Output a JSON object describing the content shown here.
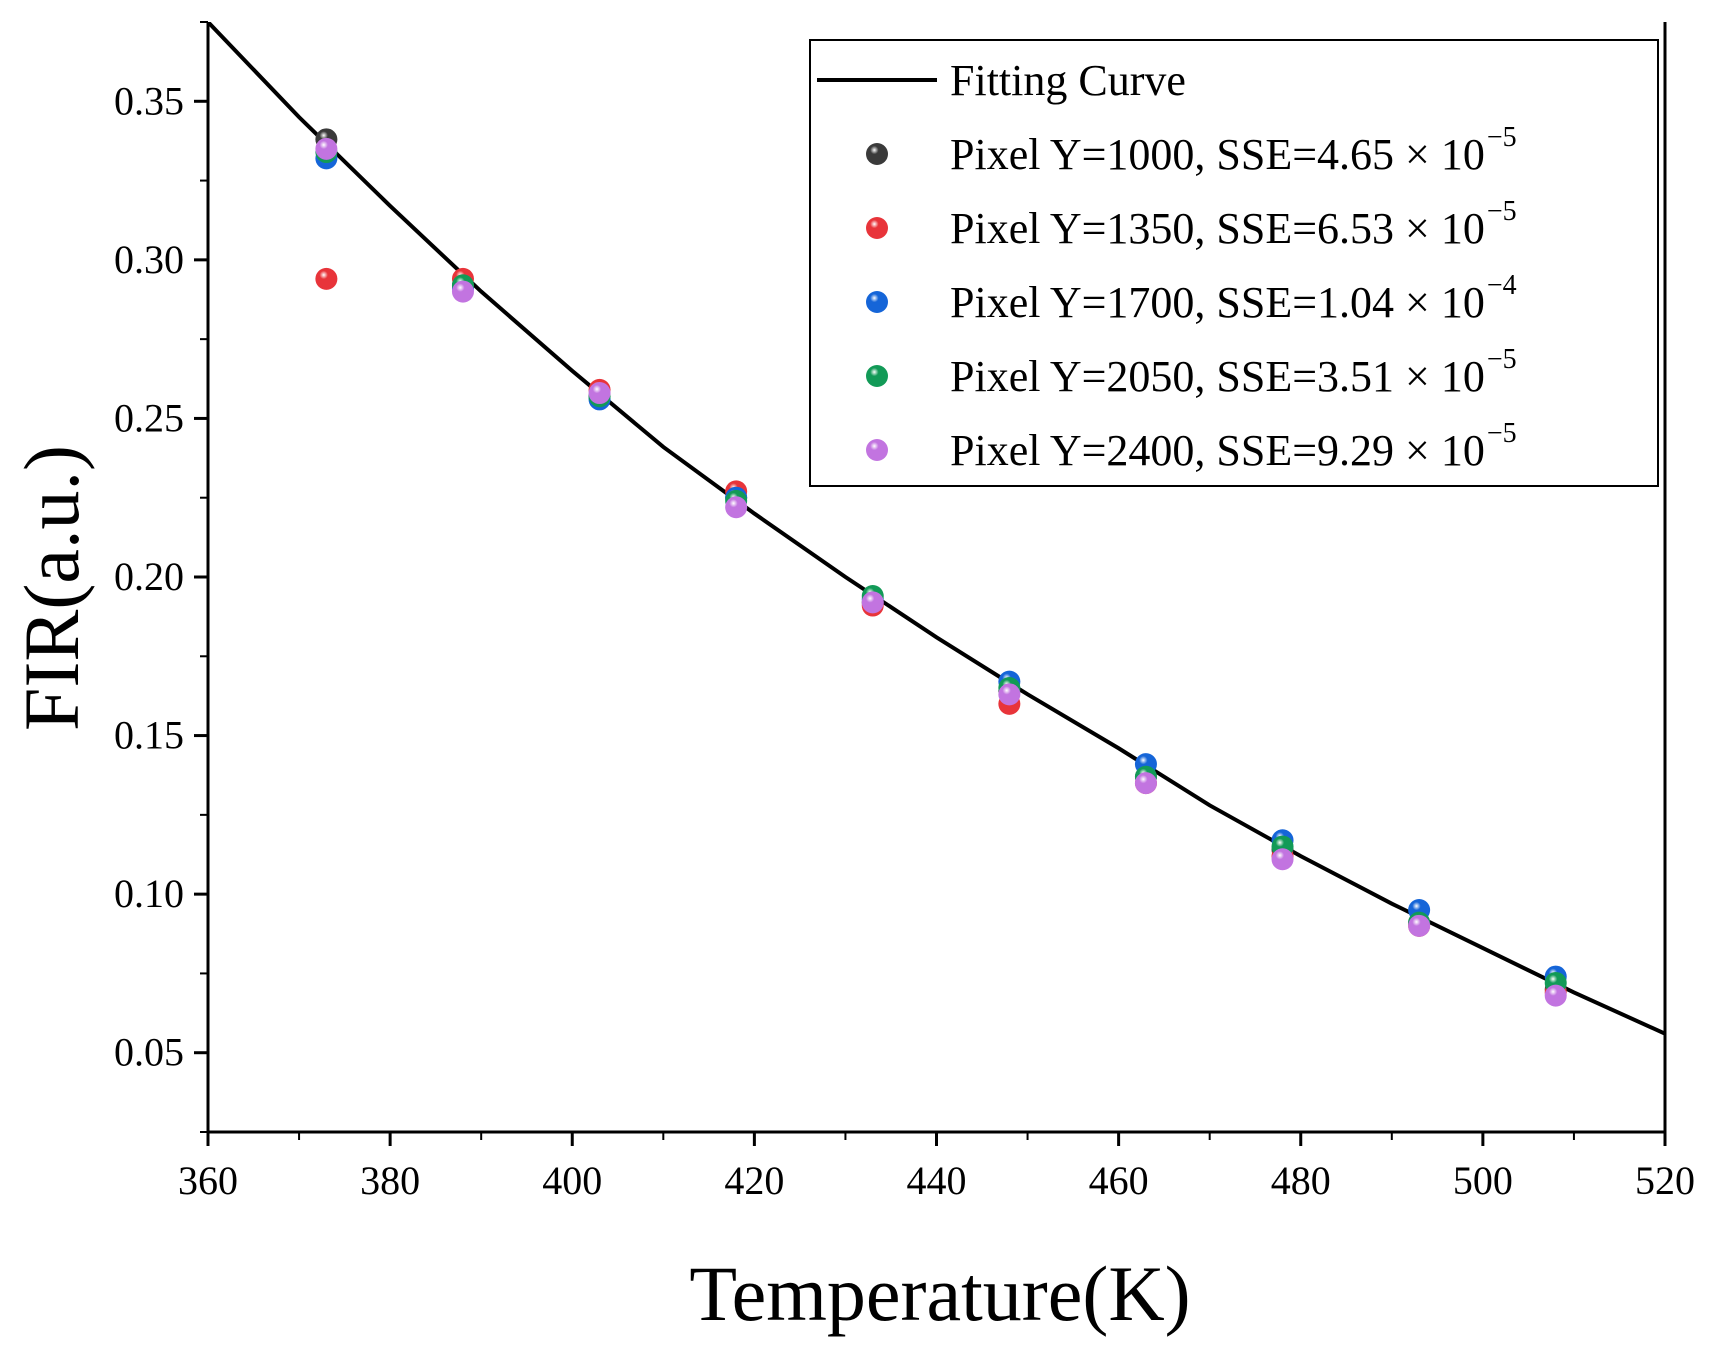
{
  "chart_data": {
    "type": "scatter",
    "title": "",
    "xlabel": "Temperature(K)",
    "ylabel": "FIR(a.u.)",
    "xlim": [
      360,
      520
    ],
    "ylim": [
      0.025,
      0.375
    ],
    "x_ticks": [
      360,
      380,
      400,
      420,
      440,
      460,
      480,
      500,
      520
    ],
    "x_tick_labels": [
      "360",
      "380",
      "400",
      "420",
      "440",
      "460",
      "480",
      "500",
      "520"
    ],
    "y_ticks": [
      0.05,
      0.1,
      0.15,
      0.2,
      0.25,
      0.3,
      0.35
    ],
    "y_tick_labels": [
      "0.05",
      "0.10",
      "0.15",
      "0.20",
      "0.25",
      "0.30",
      "0.35"
    ],
    "grid": false,
    "legend_position": "top-right",
    "fit_curve": {
      "name": "Fitting Curve",
      "color": "#000000",
      "x": [
        360,
        370,
        380,
        390,
        400,
        410,
        420,
        430,
        440,
        450,
        460,
        470,
        480,
        490,
        500,
        510,
        520
      ],
      "y": [
        0.375,
        0.345,
        0.317,
        0.29,
        0.265,
        0.241,
        0.22,
        0.2,
        0.181,
        0.163,
        0.146,
        0.128,
        0.112,
        0.097,
        0.083,
        0.069,
        0.056
      ]
    },
    "x": [
      373,
      388,
      403,
      418,
      433,
      448,
      463,
      478,
      493,
      508
    ],
    "series": [
      {
        "name": "Pixel Y=1000, SSE=4.65 × 10",
        "sup": "−5",
        "color": "#3a3a3a",
        "values": [
          0.338,
          0.292,
          0.257,
          0.225,
          0.192,
          0.164,
          0.137,
          0.114,
          0.091,
          0.07
        ]
      },
      {
        "name": "Pixel Y=1350, SSE=6.53 × 10",
        "sup": "−5",
        "color": "#e8343a",
        "values": [
          0.294,
          0.294,
          0.259,
          0.227,
          0.191,
          0.16,
          0.135,
          0.112,
          0.09,
          0.069
        ]
      },
      {
        "name": "Pixel Y=1700, SSE=1.04 × 10",
        "sup": "−4",
        "color": "#1565d8",
        "values": [
          0.332,
          0.291,
          0.256,
          0.225,
          0.193,
          0.167,
          0.141,
          0.117,
          0.095,
          0.074
        ]
      },
      {
        "name": "Pixel Y=2050, SSE=3.51 × 10",
        "sup": "−5",
        "color": "#129a57",
        "values": [
          0.334,
          0.292,
          0.257,
          0.224,
          0.194,
          0.165,
          0.137,
          0.115,
          0.091,
          0.072
        ]
      },
      {
        "name": "Pixel Y=2400, SSE=9.29 × 10",
        "sup": "−5",
        "color": "#c274e0",
        "values": [
          0.335,
          0.29,
          0.258,
          0.222,
          0.192,
          0.163,
          0.135,
          0.111,
          0.09,
          0.068
        ]
      }
    ]
  }
}
